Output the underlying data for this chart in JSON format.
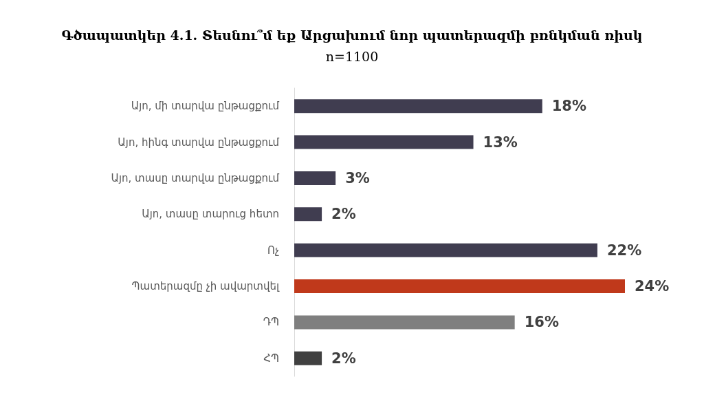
{
  "chart_data": {
    "type": "bar",
    "orientation": "horizontal",
    "title": "Գծապատկեր 4.1. Տեսնու՞մ եք Արցախում նոր պատերազմի բռնկման ռիսկ",
    "subtitle": "n=1100",
    "categories": [
      "Այո, մի տարվա ընթացքում",
      "Այո, հինգ տարվա ընթացքում",
      "Այո, տասը տարվա ընթացքում",
      "Այո, տասը տարուց հետո",
      "Ոչ",
      "Պատերազմը չի ավարտվել",
      "ԴՊ",
      "ՀՊ"
    ],
    "values": [
      18,
      13,
      3,
      2,
      22,
      24,
      16,
      2
    ],
    "value_labels": [
      "18%",
      "13%",
      "3%",
      "2%",
      "22%",
      "24%",
      "16%",
      "2%"
    ],
    "colors": [
      "#403d50",
      "#403d50",
      "#403d50",
      "#403d50",
      "#403d50",
      "#c0391b",
      "#7f7f7f",
      "#404040"
    ]
  }
}
